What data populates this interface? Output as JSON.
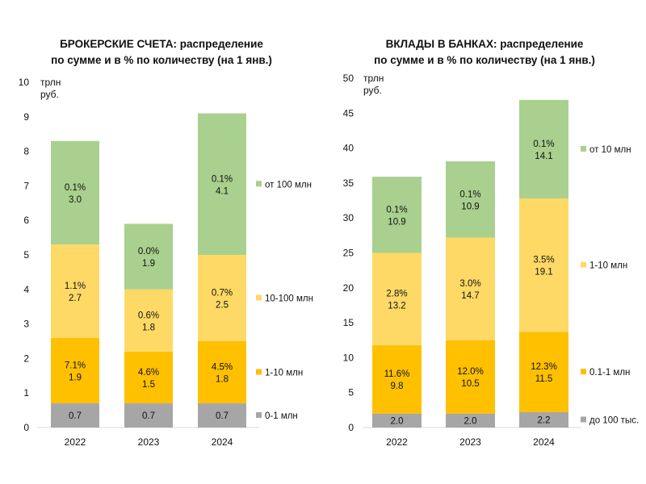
{
  "colors": {
    "seg0": "#a6a6a6",
    "seg1": "#ffc000",
    "seg2": "#ffd966",
    "seg3": "#a9d08e",
    "text": "#111111"
  },
  "chart_data": [
    {
      "type": "bar",
      "stacked": true,
      "title_line1": "БРОКЕРСКИЕ СЧЕТА: распределение",
      "title_line2": "по сумме и в % по количеству (на 1 янв.)",
      "unit_line1": "трлн",
      "unit_line2": "руб.",
      "categories": [
        "2022",
        "2023",
        "2024"
      ],
      "ylim": [
        0,
        10
      ],
      "yticks": [
        "0",
        "1",
        "2",
        "3",
        "4",
        "5",
        "6",
        "7",
        "8",
        "9",
        "10"
      ],
      "grid": false,
      "legend_position": "right",
      "series": [
        {
          "name": "0-1 млн",
          "values": [
            0.7,
            0.7,
            0.7
          ],
          "labels": [
            "0.7",
            "0.7",
            "0.7"
          ],
          "shares": [
            "",
            "",
            ""
          ]
        },
        {
          "name": "1-10 млн",
          "values": [
            1.9,
            1.5,
            1.8
          ],
          "labels": [
            "1.9",
            "1.5",
            "1.8"
          ],
          "shares": [
            "7.1%",
            "4.6%",
            "4.5%"
          ]
        },
        {
          "name": "10-100 млн",
          "values": [
            2.7,
            1.8,
            2.5
          ],
          "labels": [
            "2.7",
            "1.8",
            "2.5"
          ],
          "shares": [
            "1.1%",
            "0.6%",
            "0.7%"
          ]
        },
        {
          "name": "от 100 млн",
          "values": [
            3.0,
            1.9,
            4.1
          ],
          "labels": [
            "3.0",
            "1.9",
            "4.1"
          ],
          "shares": [
            "0.1%",
            "0.0%",
            "0.1%"
          ]
        }
      ]
    },
    {
      "type": "bar",
      "stacked": true,
      "title_line1": "ВКЛАДЫ В БАНКАХ: распределение",
      "title_line2": "по сумме и в % по количеству (на 1 янв.)",
      "unit_line1": "трлн",
      "unit_line2": "руб.",
      "categories": [
        "2022",
        "2023",
        "2024"
      ],
      "ylim": [
        0,
        50
      ],
      "yticks": [
        "0",
        "5",
        "10",
        "15",
        "20",
        "25",
        "30",
        "35",
        "40",
        "45",
        "50"
      ],
      "grid": false,
      "legend_position": "right",
      "series": [
        {
          "name": "до 100 тыс.",
          "values": [
            2.0,
            2.0,
            2.2
          ],
          "labels": [
            "2.0",
            "2.0",
            "2.2"
          ],
          "shares": [
            "",
            "",
            ""
          ]
        },
        {
          "name": "0.1-1 млн",
          "values": [
            9.8,
            10.5,
            11.5
          ],
          "labels": [
            "9.8",
            "10.5",
            "11.5"
          ],
          "shares": [
            "11.6%",
            "12.0%",
            "12.3%"
          ]
        },
        {
          "name": "1-10 млн",
          "values": [
            13.2,
            14.7,
            19.1
          ],
          "labels": [
            "13.2",
            "14.7",
            "19.1"
          ],
          "shares": [
            "2.8%",
            "3.0%",
            "3.5%"
          ]
        },
        {
          "name": "от 10 млн",
          "values": [
            10.9,
            10.9,
            14.1
          ],
          "labels": [
            "10.9",
            "10.9",
            "14.1"
          ],
          "shares": [
            "0.1%",
            "0.1%",
            "0.1%"
          ]
        }
      ]
    }
  ]
}
